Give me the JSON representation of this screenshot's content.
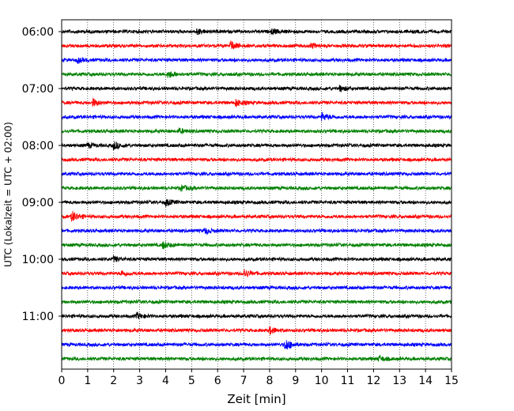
{
  "chart_data": {
    "type": "line",
    "title": "",
    "xlabel": "Zeit  [min]",
    "ylabel": "UTC (Lokalzeit = UTC + 02:00)",
    "xlim": [
      0,
      15
    ],
    "x_ticks": [
      "0",
      "1",
      "2",
      "3",
      "4",
      "5",
      "6",
      "7",
      "8",
      "9",
      "10",
      "11",
      "12",
      "13",
      "14",
      "15"
    ],
    "y_ticks": [
      {
        "label": "06:00",
        "row": 0
      },
      {
        "label": "07:00",
        "row": 4
      },
      {
        "label": "08:00",
        "row": 8
      },
      {
        "label": "09:00",
        "row": 12
      },
      {
        "label": "10:00",
        "row": 16
      },
      {
        "label": "11:00",
        "row": 20
      }
    ],
    "grid": "vertical-dotted",
    "trace_minutes": 15,
    "trace_colors": [
      "#000000",
      "#ff0000",
      "#0000ff",
      "#008000"
    ],
    "traces": [
      {
        "start": "06:00",
        "color": "#000000",
        "events": [
          {
            "t": 5.2,
            "a": 1.5
          },
          {
            "t": 8.1,
            "a": 1.4
          }
        ]
      },
      {
        "start": "06:15",
        "color": "#ff0000",
        "events": [
          {
            "t": 6.5,
            "a": 2.4
          },
          {
            "t": 9.6,
            "a": 1.3
          }
        ]
      },
      {
        "start": "06:30",
        "color": "#0000ff",
        "events": [
          {
            "t": 0.6,
            "a": 1.2
          }
        ]
      },
      {
        "start": "06:45",
        "color": "#008000",
        "events": [
          {
            "t": 4.1,
            "a": 2.0
          }
        ]
      },
      {
        "start": "07:00",
        "color": "#000000",
        "events": [
          {
            "t": 10.7,
            "a": 1.5
          }
        ]
      },
      {
        "start": "07:15",
        "color": "#ff0000",
        "events": [
          {
            "t": 1.2,
            "a": 2.0
          },
          {
            "t": 6.7,
            "a": 2.0
          }
        ]
      },
      {
        "start": "07:30",
        "color": "#0000ff",
        "events": [
          {
            "t": 10.0,
            "a": 2.2
          }
        ]
      },
      {
        "start": "07:45",
        "color": "#008000",
        "events": [
          {
            "t": 4.5,
            "a": 1.3
          }
        ]
      },
      {
        "start": "08:00",
        "color": "#000000",
        "events": [
          {
            "t": 2.0,
            "a": 2.2
          },
          {
            "t": 1.0,
            "a": 1.3
          }
        ]
      },
      {
        "start": "08:15",
        "color": "#ff0000",
        "events": []
      },
      {
        "start": "08:30",
        "color": "#0000ff",
        "events": []
      },
      {
        "start": "08:45",
        "color": "#008000",
        "events": [
          {
            "t": 4.6,
            "a": 1.4
          }
        ]
      },
      {
        "start": "09:00",
        "color": "#000000",
        "events": [
          {
            "t": 4.0,
            "a": 1.8
          }
        ]
      },
      {
        "start": "09:15",
        "color": "#ff0000",
        "events": [
          {
            "t": 0.4,
            "a": 3.0
          }
        ]
      },
      {
        "start": "09:30",
        "color": "#0000ff",
        "events": [
          {
            "t": 5.5,
            "a": 1.6
          }
        ]
      },
      {
        "start": "09:45",
        "color": "#008000",
        "events": [
          {
            "t": 3.9,
            "a": 2.0
          }
        ]
      },
      {
        "start": "10:00",
        "color": "#000000",
        "events": [
          {
            "t": 2.0,
            "a": 1.4
          }
        ]
      },
      {
        "start": "10:15",
        "color": "#ff0000",
        "events": [
          {
            "t": 7.0,
            "a": 2.4
          },
          {
            "t": 2.3,
            "a": 1.4
          }
        ]
      },
      {
        "start": "10:30",
        "color": "#0000ff",
        "events": []
      },
      {
        "start": "10:45",
        "color": "#008000",
        "events": []
      },
      {
        "start": "11:00",
        "color": "#000000",
        "events": [
          {
            "t": 2.9,
            "a": 1.6
          }
        ]
      },
      {
        "start": "11:15",
        "color": "#ff0000",
        "events": [
          {
            "t": 8.0,
            "a": 2.0
          }
        ]
      },
      {
        "start": "11:30",
        "color": "#0000ff",
        "events": [
          {
            "t": 8.6,
            "a": 3.4
          }
        ]
      },
      {
        "start": "11:45",
        "color": "#008000",
        "events": [
          {
            "t": 12.2,
            "a": 1.5
          }
        ]
      }
    ]
  }
}
